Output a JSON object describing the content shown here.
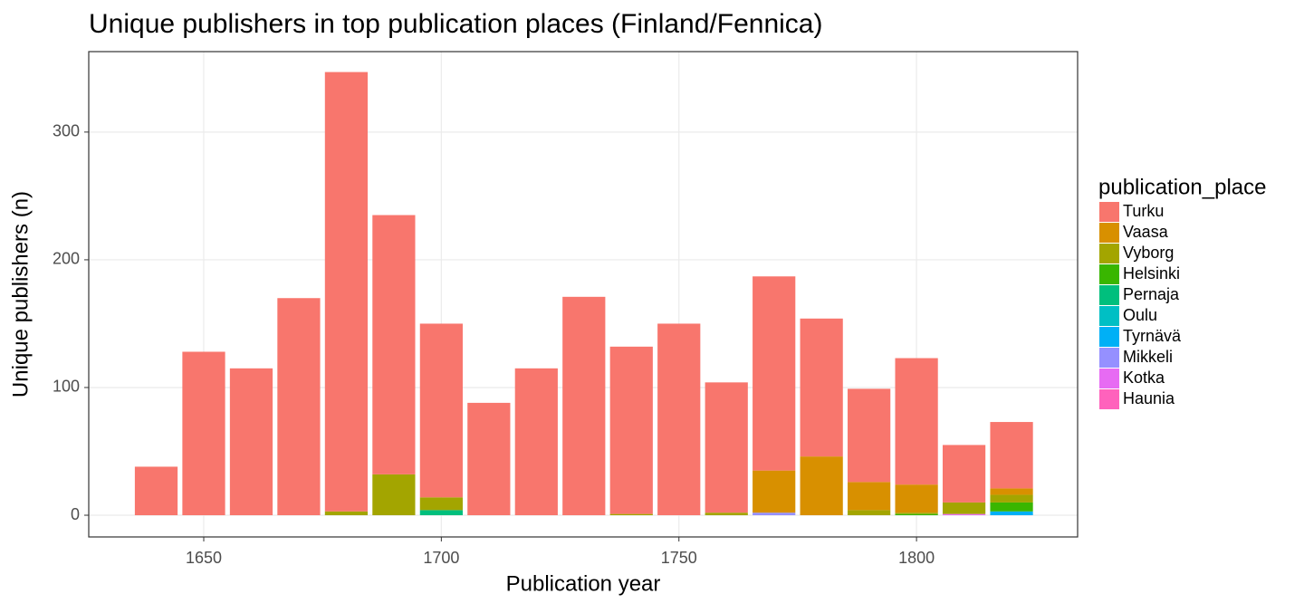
{
  "chart_data": {
    "type": "stacked-bar",
    "title": "Unique publishers in top publication places (Finland/Fennica)",
    "x_label": "Publication year",
    "y_label": "Unique publishers (n)",
    "legend_title": "publication_place",
    "x": [
      1640,
      1650,
      1660,
      1670,
      1680,
      1690,
      1700,
      1710,
      1720,
      1730,
      1740,
      1750,
      1760,
      1770,
      1780,
      1790,
      1800,
      1810,
      1820
    ],
    "series": [
      {
        "name": "Turku",
        "color": "#F8766D",
        "values": [
          38,
          128,
          115,
          170,
          344,
          203,
          136,
          88,
          115,
          171,
          131,
          150,
          102,
          152,
          108,
          73,
          99,
          45,
          52
        ]
      },
      {
        "name": "Vaasa",
        "color": "#D89000",
        "values": [
          0,
          0,
          0,
          0,
          0,
          0,
          0,
          0,
          0,
          0,
          0,
          0,
          0,
          33,
          46,
          22,
          22,
          0,
          5
        ]
      },
      {
        "name": "Vyborg",
        "color": "#A3A500",
        "values": [
          0,
          0,
          0,
          0,
          3,
          32,
          10,
          0,
          0,
          0,
          1,
          0,
          2,
          0,
          0,
          4,
          1,
          9,
          6
        ]
      },
      {
        "name": "Helsinki",
        "color": "#39B600",
        "values": [
          0,
          0,
          0,
          0,
          0,
          0,
          0,
          0,
          0,
          0,
          0,
          0,
          0,
          0,
          0,
          0,
          1,
          0,
          7
        ]
      },
      {
        "name": "Pernaja",
        "color": "#00BF7D",
        "values": [
          0,
          0,
          0,
          0,
          0,
          0,
          4,
          0,
          0,
          0,
          0,
          0,
          0,
          0,
          0,
          0,
          0,
          0,
          0
        ]
      },
      {
        "name": "Oulu",
        "color": "#00BFC4",
        "values": [
          0,
          0,
          0,
          0,
          0,
          0,
          0,
          0,
          0,
          0,
          0,
          0,
          0,
          0,
          0,
          0,
          0,
          0,
          0
        ]
      },
      {
        "name": "Tyrnävä",
        "color": "#00B0F6",
        "values": [
          0,
          0,
          0,
          0,
          0,
          0,
          0,
          0,
          0,
          0,
          0,
          0,
          0,
          0,
          0,
          0,
          0,
          0,
          3
        ]
      },
      {
        "name": "Mikkeli",
        "color": "#9590FF",
        "values": [
          0,
          0,
          0,
          0,
          0,
          0,
          0,
          0,
          0,
          0,
          0,
          0,
          0,
          2,
          0,
          0,
          0,
          0,
          0
        ]
      },
      {
        "name": "Kotka",
        "color": "#E76BF3",
        "values": [
          0,
          0,
          0,
          0,
          0,
          0,
          0,
          0,
          0,
          0,
          0,
          0,
          0,
          0,
          0,
          0,
          0,
          1,
          0
        ]
      },
      {
        "name": "Haunia",
        "color": "#FF62BC",
        "values": [
          0,
          0,
          0,
          0,
          0,
          0,
          0,
          0,
          0,
          0,
          0,
          0,
          0,
          0,
          0,
          0,
          0,
          0,
          0
        ]
      }
    ],
    "bar_width": 9,
    "xlim": [
      1625.8,
      1833.9
    ],
    "xticks": [
      1650,
      1700,
      1750,
      1800
    ],
    "ylim": [
      -17,
      363
    ],
    "yticks": [
      0,
      100,
      200,
      300
    ],
    "grid": true
  }
}
